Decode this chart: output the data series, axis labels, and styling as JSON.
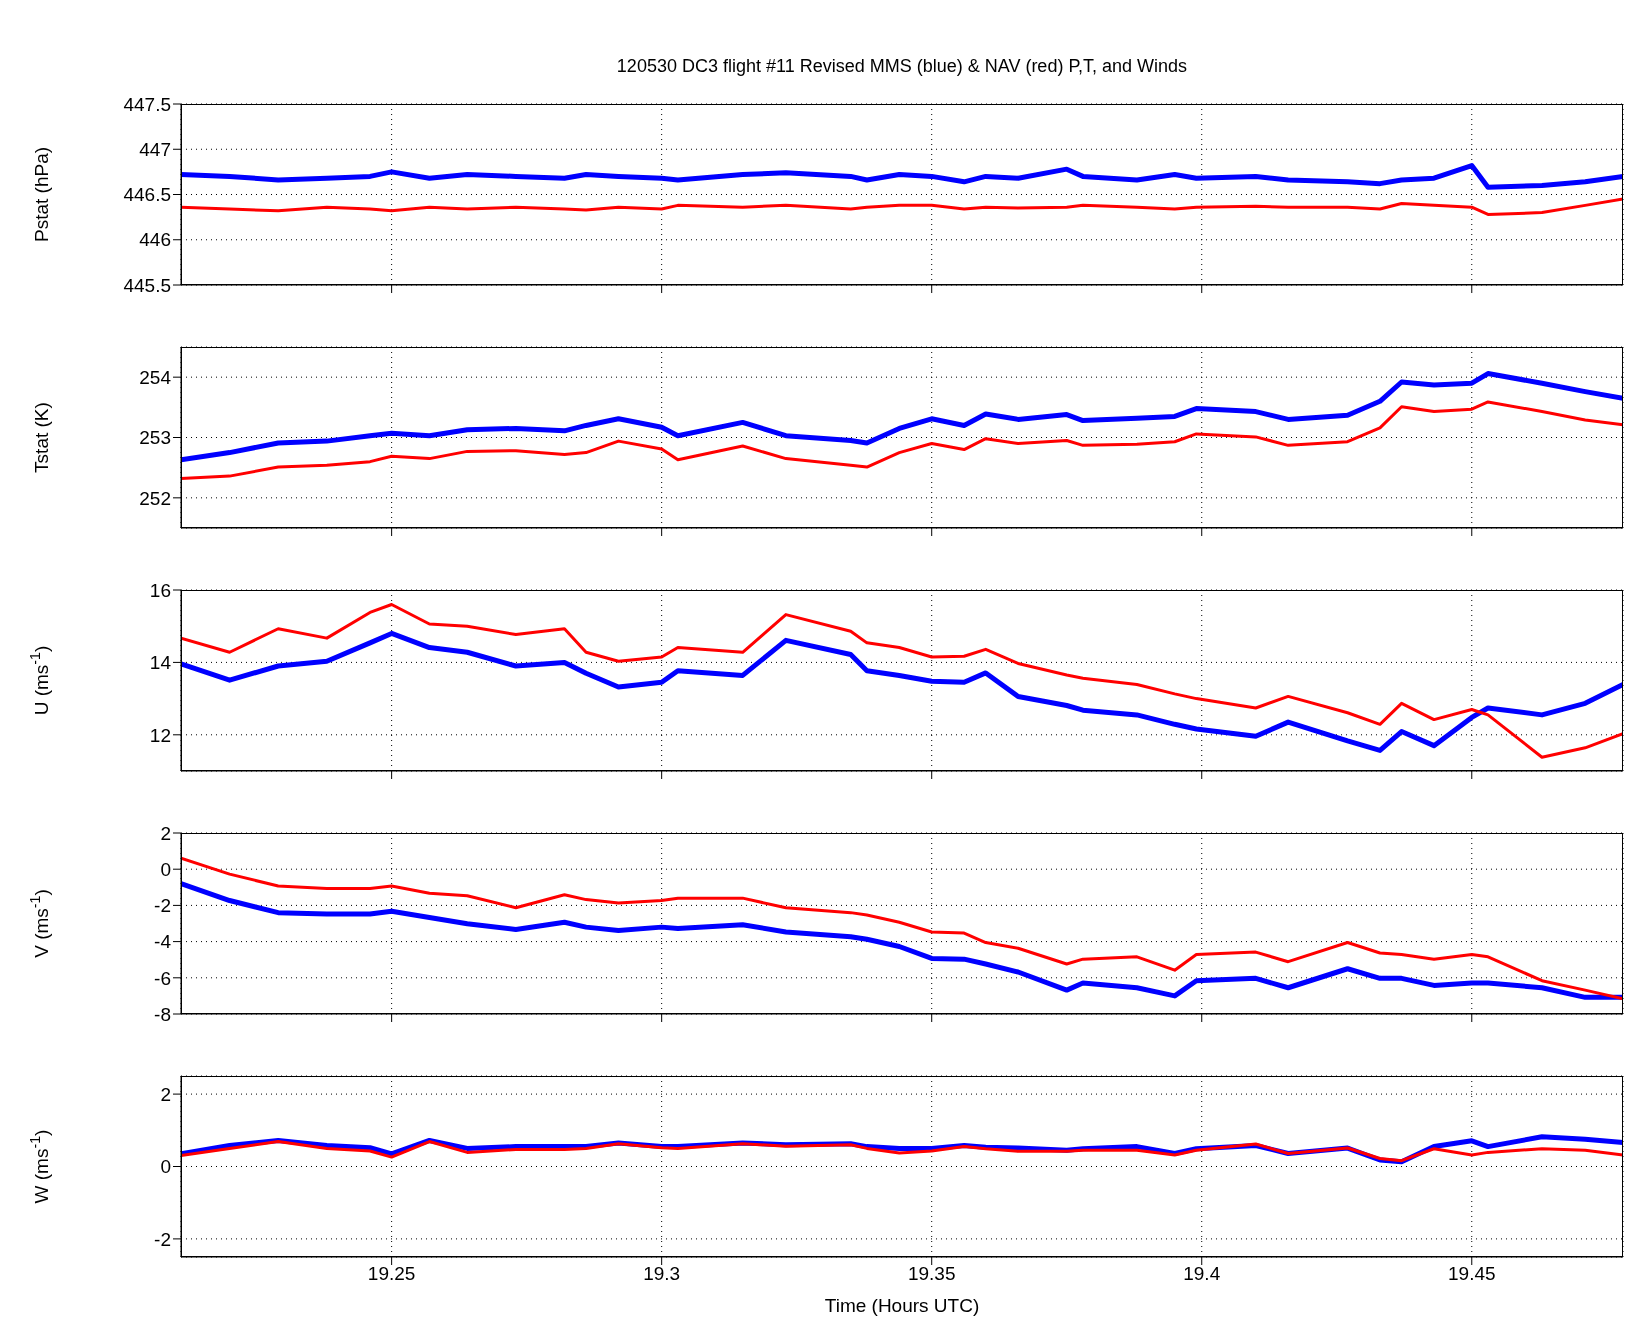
{
  "chart_data": [
    {
      "type": "line",
      "title": "120530 DC3 flight #11 Revised MMS (blue) & NAV (red) P,T, and Winds",
      "ylabel": "Pstat (hPa)",
      "tick_labels": "y",
      "grid": true,
      "x": [
        19.211,
        19.22,
        19.229,
        19.238,
        19.246,
        19.25,
        19.257,
        19.264,
        19.273,
        19.282,
        19.286,
        19.292,
        19.3,
        19.303,
        19.315,
        19.323,
        19.335,
        19.338,
        19.344,
        19.35,
        19.356,
        19.36,
        19.366,
        19.375,
        19.378,
        19.388,
        19.395,
        19.399,
        19.41,
        19.416,
        19.427,
        19.433,
        19.437,
        19.443,
        19.45,
        19.453,
        19.463,
        19.471,
        19.478
      ],
      "xlim": [
        19.211,
        19.478
      ],
      "xticks": [
        19.25,
        19.3,
        19.35,
        19.4,
        19.45
      ],
      "ylim": [
        445.5,
        447.5
      ],
      "yticks": [
        445.5,
        446,
        446.5,
        447,
        447.5
      ],
      "series": [
        {
          "color": "#0000ff",
          "values": [
            446.72,
            446.7,
            446.66,
            446.68,
            446.7,
            446.75,
            446.68,
            446.72,
            446.7,
            446.68,
            446.72,
            446.7,
            446.68,
            446.66,
            446.72,
            446.74,
            446.7,
            446.66,
            446.72,
            446.7,
            446.64,
            446.7,
            446.68,
            446.78,
            446.7,
            446.66,
            446.72,
            446.68,
            446.7,
            446.66,
            446.64,
            446.62,
            446.66,
            446.68,
            446.82,
            446.58,
            446.6,
            446.64,
            446.7
          ]
        },
        {
          "color": "#ff0000",
          "values": [
            446.36,
            446.34,
            446.32,
            446.36,
            446.34,
            446.32,
            446.36,
            446.34,
            446.36,
            446.34,
            446.33,
            446.36,
            446.34,
            446.38,
            446.36,
            446.38,
            446.34,
            446.36,
            446.38,
            446.38,
            446.34,
            446.36,
            446.35,
            446.36,
            446.38,
            446.36,
            446.34,
            446.36,
            446.37,
            446.36,
            446.36,
            446.34,
            446.4,
            446.38,
            446.36,
            446.28,
            446.3,
            446.38,
            446.45
          ]
        }
      ]
    },
    {
      "type": "line",
      "ylabel": "Tstat (K)",
      "tick_labels": "y",
      "grid": true,
      "x": [
        19.211,
        19.22,
        19.229,
        19.238,
        19.246,
        19.25,
        19.257,
        19.264,
        19.273,
        19.282,
        19.286,
        19.292,
        19.3,
        19.303,
        19.315,
        19.323,
        19.335,
        19.338,
        19.344,
        19.35,
        19.356,
        19.36,
        19.366,
        19.375,
        19.378,
        19.388,
        19.395,
        19.399,
        19.41,
        19.416,
        19.427,
        19.433,
        19.437,
        19.443,
        19.45,
        19.453,
        19.463,
        19.471,
        19.478
      ],
      "xlim": [
        19.211,
        19.478
      ],
      "xticks": [
        19.25,
        19.3,
        19.35,
        19.4,
        19.45
      ],
      "ylim": [
        251.5,
        254.5
      ],
      "yticks": [
        252,
        253,
        254
      ],
      "series": [
        {
          "color": "#0000ff",
          "values": [
            252.63,
            252.75,
            252.91,
            252.94,
            253.03,
            253.07,
            253.03,
            253.13,
            253.15,
            253.11,
            253.2,
            253.31,
            253.17,
            253.03,
            253.25,
            253.03,
            252.95,
            252.91,
            253.15,
            253.31,
            253.2,
            253.39,
            253.3,
            253.38,
            253.28,
            253.32,
            253.35,
            253.48,
            253.43,
            253.3,
            253.37,
            253.6,
            253.92,
            253.87,
            253.9,
            254.06,
            253.9,
            253.76,
            253.65
          ]
        },
        {
          "color": "#ff0000",
          "values": [
            252.32,
            252.36,
            252.51,
            252.54,
            252.6,
            252.69,
            252.65,
            252.77,
            252.78,
            252.72,
            252.75,
            252.94,
            252.81,
            252.63,
            252.86,
            252.65,
            252.54,
            252.51,
            252.75,
            252.9,
            252.8,
            252.98,
            252.9,
            252.95,
            252.87,
            252.89,
            252.93,
            253.06,
            253.01,
            252.87,
            252.93,
            253.16,
            253.51,
            253.43,
            253.47,
            253.59,
            253.43,
            253.29,
            253.21
          ]
        }
      ]
    },
    {
      "type": "line",
      "ylabel": "U (ms$^{-1}$)",
      "tick_labels": "y",
      "grid": true,
      "x": [
        19.211,
        19.22,
        19.229,
        19.238,
        19.246,
        19.25,
        19.257,
        19.264,
        19.273,
        19.282,
        19.286,
        19.292,
        19.3,
        19.303,
        19.315,
        19.323,
        19.335,
        19.338,
        19.344,
        19.35,
        19.356,
        19.36,
        19.366,
        19.375,
        19.378,
        19.388,
        19.395,
        19.399,
        19.41,
        19.416,
        19.427,
        19.433,
        19.437,
        19.443,
        19.45,
        19.453,
        19.463,
        19.471,
        19.478
      ],
      "xlim": [
        19.211,
        19.478
      ],
      "xticks": [
        19.25,
        19.3,
        19.35,
        19.4,
        19.45
      ],
      "ylim": [
        11,
        16
      ],
      "yticks": [
        12,
        14,
        16
      ],
      "series": [
        {
          "color": "#0000ff",
          "values": [
            13.96,
            13.51,
            13.9,
            14.03,
            14.54,
            14.8,
            14.41,
            14.28,
            13.9,
            14.0,
            13.7,
            13.32,
            13.45,
            13.77,
            13.64,
            14.61,
            14.22,
            13.77,
            13.64,
            13.48,
            13.45,
            13.71,
            13.06,
            12.81,
            12.68,
            12.55,
            12.29,
            12.16,
            11.96,
            12.35,
            11.83,
            11.57,
            12.09,
            11.7,
            12.48,
            12.74,
            12.55,
            12.87,
            13.39
          ]
        },
        {
          "color": "#ff0000",
          "values": [
            14.67,
            14.28,
            14.93,
            14.67,
            15.38,
            15.6,
            15.06,
            15.0,
            14.77,
            14.93,
            14.28,
            14.03,
            14.15,
            14.41,
            14.28,
            15.32,
            14.86,
            14.54,
            14.41,
            14.15,
            14.17,
            14.36,
            13.97,
            13.65,
            13.56,
            13.39,
            13.13,
            13.0,
            12.74,
            13.06,
            12.61,
            12.29,
            12.87,
            12.42,
            12.7,
            12.55,
            11.38,
            11.64,
            12.03
          ]
        }
      ]
    },
    {
      "type": "line",
      "ylabel": "V (ms$^{-1}$)",
      "tick_labels": "y",
      "grid": true,
      "x": [
        19.211,
        19.22,
        19.229,
        19.238,
        19.246,
        19.25,
        19.257,
        19.264,
        19.273,
        19.282,
        19.286,
        19.292,
        19.3,
        19.303,
        19.315,
        19.323,
        19.335,
        19.338,
        19.344,
        19.35,
        19.356,
        19.36,
        19.366,
        19.375,
        19.378,
        19.388,
        19.395,
        19.399,
        19.41,
        19.416,
        19.427,
        19.433,
        19.437,
        19.443,
        19.45,
        19.453,
        19.463,
        19.471,
        19.478
      ],
      "xlim": [
        19.211,
        19.478
      ],
      "xticks": [
        19.25,
        19.3,
        19.35,
        19.4,
        19.45
      ],
      "ylim": [
        -8,
        2
      ],
      "yticks": [
        -8,
        -6,
        -4,
        -2,
        0,
        2
      ],
      "series": [
        {
          "color": "#0000ff",
          "values": [
            -0.8,
            -1.73,
            -2.4,
            -2.48,
            -2.48,
            -2.32,
            -2.67,
            -3.01,
            -3.33,
            -2.93,
            -3.2,
            -3.39,
            -3.2,
            -3.28,
            -3.07,
            -3.47,
            -3.73,
            -3.87,
            -4.27,
            -4.93,
            -4.97,
            -5.24,
            -5.68,
            -6.68,
            -6.29,
            -6.55,
            -7.0,
            -6.16,
            -6.03,
            -6.55,
            -5.5,
            -6.03,
            -6.03,
            -6.42,
            -6.29,
            -6.29,
            -6.55,
            -7.08,
            -7.08
          ]
        },
        {
          "color": "#ff0000",
          "values": [
            0.61,
            -0.27,
            -0.93,
            -1.07,
            -1.07,
            -0.93,
            -1.33,
            -1.47,
            -2.13,
            -1.41,
            -1.68,
            -1.87,
            -1.73,
            -1.6,
            -1.6,
            -2.13,
            -2.4,
            -2.53,
            -2.93,
            -3.47,
            -3.53,
            -4.05,
            -4.37,
            -5.24,
            -4.97,
            -4.84,
            -5.58,
            -4.71,
            -4.58,
            -5.11,
            -4.05,
            -4.63,
            -4.71,
            -4.97,
            -4.71,
            -4.84,
            -6.16,
            -6.68,
            -7.16
          ]
        }
      ]
    },
    {
      "type": "line",
      "ylabel": "W (ms$^{-1}$)",
      "xlabel": "Time (Hours UTC)",
      "grid": true,
      "x": [
        19.211,
        19.22,
        19.229,
        19.238,
        19.246,
        19.25,
        19.257,
        19.264,
        19.273,
        19.282,
        19.286,
        19.292,
        19.3,
        19.303,
        19.315,
        19.323,
        19.335,
        19.338,
        19.344,
        19.35,
        19.356,
        19.36,
        19.366,
        19.375,
        19.378,
        19.388,
        19.395,
        19.399,
        19.41,
        19.416,
        19.427,
        19.433,
        19.437,
        19.443,
        19.45,
        19.453,
        19.463,
        19.471,
        19.478
      ],
      "xlim": [
        19.211,
        19.478
      ],
      "xticks": [
        19.25,
        19.3,
        19.35,
        19.4,
        19.45
      ],
      "ylim": [
        -2.5,
        2.5
      ],
      "yticks": [
        -2,
        0,
        2
      ],
      "series": [
        {
          "color": "#0000ff",
          "values": [
            0.35,
            0.58,
            0.72,
            0.58,
            0.52,
            0.35,
            0.72,
            0.5,
            0.55,
            0.55,
            0.55,
            0.65,
            0.55,
            0.55,
            0.65,
            0.6,
            0.63,
            0.55,
            0.5,
            0.5,
            0.58,
            0.53,
            0.51,
            0.45,
            0.49,
            0.55,
            0.36,
            0.49,
            0.58,
            0.36,
            0.51,
            0.18,
            0.13,
            0.55,
            0.71,
            0.55,
            0.82,
            0.75,
            0.66
          ]
        },
        {
          "color": "#ff0000",
          "values": [
            0.3,
            0.5,
            0.69,
            0.5,
            0.43,
            0.26,
            0.69,
            0.39,
            0.47,
            0.47,
            0.5,
            0.63,
            0.52,
            0.5,
            0.63,
            0.56,
            0.6,
            0.5,
            0.37,
            0.43,
            0.55,
            0.49,
            0.42,
            0.42,
            0.45,
            0.45,
            0.32,
            0.45,
            0.62,
            0.36,
            0.51,
            0.22,
            0.16,
            0.49,
            0.32,
            0.39,
            0.49,
            0.45,
            0.32
          ]
        }
      ]
    }
  ]
}
